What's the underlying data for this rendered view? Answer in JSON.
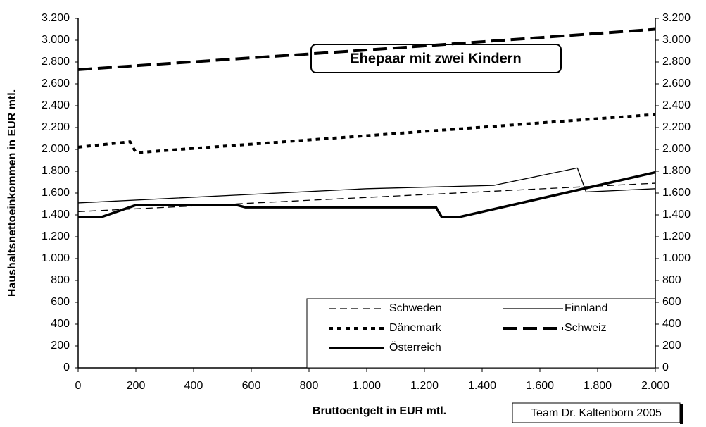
{
  "chart_data": {
    "type": "line",
    "annotations": [
      "Ehepaar mit zwei Kindern",
      "Team Dr. Kaltenborn 2005"
    ],
    "x_label": "Bruttoentgelt in EUR mtl.",
    "y_label": "Haushaltsnettoeinkommen in EUR mtl.",
    "xlim": [
      0,
      2000
    ],
    "xticks": [
      0,
      200,
      400,
      600,
      800,
      {
        "value": 1000,
        "label": "1.000"
      },
      {
        "value": 1200,
        "label": "1.200"
      },
      {
        "value": 1400,
        "label": "1.400"
      },
      {
        "value": 1600,
        "label": "1.600"
      },
      {
        "value": 1800,
        "label": "1.800"
      },
      {
        "value": 2000,
        "label": "2.000"
      }
    ],
    "ylim": [
      0,
      3200
    ],
    "yticks": [
      0,
      200,
      400,
      600,
      800,
      {
        "value": 1000,
        "label": "1.000"
      },
      {
        "value": 1200,
        "label": "1.200"
      },
      {
        "value": 1400,
        "label": "1.400"
      },
      {
        "value": 1600,
        "label": "1.600"
      },
      {
        "value": 1800,
        "label": "1.800"
      },
      {
        "value": 2000,
        "label": "2.000"
      },
      {
        "value": 2200,
        "label": "2.200"
      },
      {
        "value": 2400,
        "label": "2.400"
      },
      {
        "value": 2600,
        "label": "2.600"
      },
      {
        "value": 2800,
        "label": "2.800"
      },
      {
        "value": 3000,
        "label": "3.000"
      },
      {
        "value": 3200,
        "label": "3.200"
      }
    ],
    "y2lim": [
      0,
      3200
    ],
    "y2ticks": [
      0,
      200,
      400,
      600,
      800,
      {
        "value": 1000,
        "label": "1.000"
      },
      {
        "value": 1200,
        "label": "1.200"
      },
      {
        "value": 1400,
        "label": "1.400"
      },
      {
        "value": 1600,
        "label": "1.600"
      },
      {
        "value": 1800,
        "label": "1.800"
      },
      {
        "value": 2000,
        "label": "2.000"
      },
      {
        "value": 2200,
        "label": "2.200"
      },
      {
        "value": 2400,
        "label": "2.400"
      },
      {
        "value": 2600,
        "label": "2.600"
      },
      {
        "value": 2800,
        "label": "2.800"
      },
      {
        "value": 3000,
        "label": "3.000"
      },
      {
        "value": 3200,
        "label": "3.200"
      }
    ],
    "grid": false,
    "legend": "lower right",
    "series": [
      {
        "name": "Schweden",
        "color": "#000000",
        "style": "dashed",
        "x": [
          0,
          2000
        ],
        "values": [
          1430,
          1690
        ]
      },
      {
        "name": "Finnland",
        "color": "#000000",
        "style": "solid",
        "x": [
          0,
          1000,
          1440,
          1730,
          1760,
          2000
        ],
        "values": [
          1510,
          1640,
          1670,
          1830,
          1610,
          1640
        ]
      },
      {
        "name": "Dänemark",
        "color": "#000000",
        "style": "dotted",
        "x": [
          0,
          180,
          200,
          2000
        ],
        "values": [
          2020,
          2070,
          1970,
          2320
        ]
      },
      {
        "name": "Schweiz",
        "color": "#000000",
        "style": "longdash",
        "x": [
          0,
          1000,
          2000
        ],
        "values": [
          2730,
          2910,
          3100
        ]
      },
      {
        "name": "Österreich",
        "color": "#000000",
        "style": "thick",
        "x": [
          0,
          80,
          200,
          550,
          580,
          1240,
          1260,
          1320,
          2000
        ],
        "values": [
          1380,
          1380,
          1490,
          1490,
          1470,
          1470,
          1380,
          1380,
          1790
        ]
      }
    ]
  }
}
